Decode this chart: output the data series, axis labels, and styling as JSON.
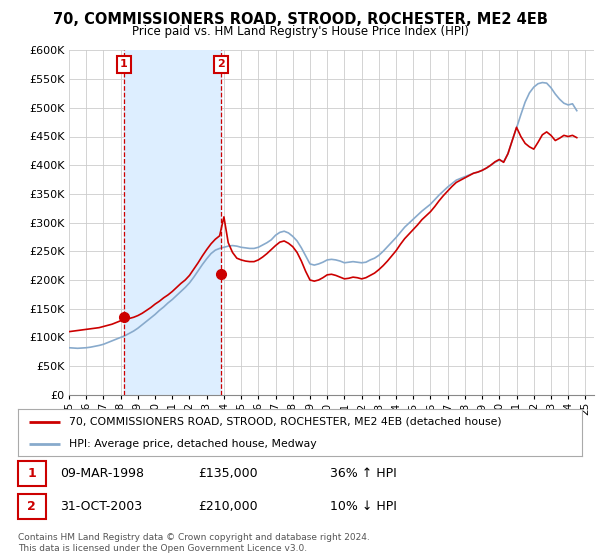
{
  "title": "70, COMMISSIONERS ROAD, STROOD, ROCHESTER, ME2 4EB",
  "subtitle": "Price paid vs. HM Land Registry's House Price Index (HPI)",
  "ylim": [
    0,
    600000
  ],
  "yticks": [
    0,
    50000,
    100000,
    150000,
    200000,
    250000,
    300000,
    350000,
    400000,
    450000,
    500000,
    550000,
    600000
  ],
  "ytick_labels": [
    "£0",
    "£50K",
    "£100K",
    "£150K",
    "£200K",
    "£250K",
    "£300K",
    "£350K",
    "£400K",
    "£450K",
    "£500K",
    "£550K",
    "£600K"
  ],
  "xlim_start": 1995.0,
  "xlim_end": 2025.5,
  "background_color": "#ffffff",
  "plot_bg_color": "#ffffff",
  "grid_color": "#cccccc",
  "sale1": {
    "year": 1998.19,
    "price": 135000,
    "label": "1",
    "date": "09-MAR-1998",
    "price_str": "£135,000",
    "hpi_str": "36% ↑ HPI"
  },
  "sale2": {
    "year": 2003.83,
    "price": 210000,
    "label": "2",
    "date": "31-OCT-2003",
    "price_str": "£210,000",
    "hpi_str": "10% ↓ HPI"
  },
  "legend_label_red": "70, COMMISSIONERS ROAD, STROOD, ROCHESTER, ME2 4EB (detached house)",
  "legend_label_blue": "HPI: Average price, detached house, Medway",
  "footer": "Contains HM Land Registry data © Crown copyright and database right 2024.\nThis data is licensed under the Open Government Licence v3.0.",
  "red_color": "#cc0000",
  "blue_color": "#88aacc",
  "shade_color": "#ddeeff",
  "hpi_x": [
    1995.0,
    1995.25,
    1995.5,
    1995.75,
    1996.0,
    1996.25,
    1996.5,
    1996.75,
    1997.0,
    1997.25,
    1997.5,
    1997.75,
    1998.0,
    1998.25,
    1998.5,
    1998.75,
    1999.0,
    1999.25,
    1999.5,
    1999.75,
    2000.0,
    2000.25,
    2000.5,
    2000.75,
    2001.0,
    2001.25,
    2001.5,
    2001.75,
    2002.0,
    2002.25,
    2002.5,
    2002.75,
    2003.0,
    2003.25,
    2003.5,
    2003.75,
    2004.0,
    2004.25,
    2004.5,
    2004.75,
    2005.0,
    2005.25,
    2005.5,
    2005.75,
    2006.0,
    2006.25,
    2006.5,
    2006.75,
    2007.0,
    2007.25,
    2007.5,
    2007.75,
    2008.0,
    2008.25,
    2008.5,
    2008.75,
    2009.0,
    2009.25,
    2009.5,
    2009.75,
    2010.0,
    2010.25,
    2010.5,
    2010.75,
    2011.0,
    2011.25,
    2011.5,
    2011.75,
    2012.0,
    2012.25,
    2012.5,
    2012.75,
    2013.0,
    2013.25,
    2013.5,
    2013.75,
    2014.0,
    2014.25,
    2014.5,
    2014.75,
    2015.0,
    2015.25,
    2015.5,
    2015.75,
    2016.0,
    2016.25,
    2016.5,
    2016.75,
    2017.0,
    2017.25,
    2017.5,
    2017.75,
    2018.0,
    2018.25,
    2018.5,
    2018.75,
    2019.0,
    2019.25,
    2019.5,
    2019.75,
    2020.0,
    2020.25,
    2020.5,
    2020.75,
    2021.0,
    2021.25,
    2021.5,
    2021.75,
    2022.0,
    2022.25,
    2022.5,
    2022.75,
    2023.0,
    2023.25,
    2023.5,
    2023.75,
    2024.0,
    2024.25,
    2024.5
  ],
  "hpi_y": [
    82000,
    81500,
    81000,
    81500,
    82000,
    83000,
    84500,
    86000,
    88000,
    91000,
    94000,
    97000,
    100000,
    103000,
    107000,
    111000,
    116000,
    122000,
    128000,
    134000,
    140000,
    147000,
    153000,
    160000,
    166000,
    173000,
    180000,
    187000,
    195000,
    205000,
    216000,
    227000,
    237000,
    246000,
    252000,
    255000,
    257000,
    259000,
    260000,
    259000,
    257000,
    256000,
    255000,
    255000,
    257000,
    261000,
    265000,
    270000,
    278000,
    283000,
    285000,
    282000,
    276000,
    268000,
    256000,
    242000,
    228000,
    226000,
    228000,
    231000,
    235000,
    236000,
    235000,
    233000,
    230000,
    231000,
    232000,
    231000,
    230000,
    231000,
    235000,
    238000,
    243000,
    250000,
    258000,
    266000,
    274000,
    283000,
    292000,
    299000,
    306000,
    313000,
    320000,
    326000,
    332000,
    340000,
    348000,
    355000,
    362000,
    368000,
    374000,
    377000,
    380000,
    383000,
    386000,
    388000,
    391000,
    395000,
    400000,
    405000,
    409000,
    406000,
    420000,
    443000,
    465000,
    488000,
    510000,
    526000,
    536000,
    542000,
    544000,
    543000,
    535000,
    524000,
    515000,
    508000,
    505000,
    507000,
    495000
  ],
  "red_x": [
    1995.0,
    1995.25,
    1995.5,
    1995.75,
    1996.0,
    1996.25,
    1996.5,
    1996.75,
    1997.0,
    1997.25,
    1997.5,
    1997.75,
    1998.0,
    1998.25,
    1998.5,
    1998.75,
    1999.0,
    1999.25,
    1999.5,
    1999.75,
    2000.0,
    2000.25,
    2000.5,
    2000.75,
    2001.0,
    2001.25,
    2001.5,
    2001.75,
    2002.0,
    2002.25,
    2002.5,
    2002.75,
    2003.0,
    2003.25,
    2003.5,
    2003.75,
    2004.0,
    2004.25,
    2004.5,
    2004.75,
    2005.0,
    2005.25,
    2005.5,
    2005.75,
    2006.0,
    2006.25,
    2006.5,
    2006.75,
    2007.0,
    2007.25,
    2007.5,
    2007.75,
    2008.0,
    2008.25,
    2008.5,
    2008.75,
    2009.0,
    2009.25,
    2009.5,
    2009.75,
    2010.0,
    2010.25,
    2010.5,
    2010.75,
    2011.0,
    2011.25,
    2011.5,
    2011.75,
    2012.0,
    2012.25,
    2012.5,
    2012.75,
    2013.0,
    2013.25,
    2013.5,
    2013.75,
    2014.0,
    2014.25,
    2014.5,
    2014.75,
    2015.0,
    2015.25,
    2015.5,
    2015.75,
    2016.0,
    2016.25,
    2016.5,
    2016.75,
    2017.0,
    2017.25,
    2017.5,
    2017.75,
    2018.0,
    2018.25,
    2018.5,
    2018.75,
    2019.0,
    2019.25,
    2019.5,
    2019.75,
    2020.0,
    2020.25,
    2020.5,
    2020.75,
    2021.0,
    2021.25,
    2021.5,
    2021.75,
    2022.0,
    2022.25,
    2022.5,
    2022.75,
    2023.0,
    2023.25,
    2023.5,
    2023.75,
    2024.0,
    2024.25,
    2024.5
  ],
  "red_y": [
    110000,
    111000,
    112000,
    113000,
    114000,
    115000,
    116000,
    117000,
    119000,
    121000,
    123000,
    126000,
    129000,
    131000,
    133000,
    135000,
    138000,
    142000,
    147000,
    152000,
    158000,
    163000,
    169000,
    174000,
    180000,
    187000,
    194000,
    200000,
    208000,
    219000,
    230000,
    242000,
    253000,
    263000,
    271000,
    277000,
    310000,
    265000,
    248000,
    238000,
    235000,
    233000,
    232000,
    232000,
    235000,
    240000,
    246000,
    253000,
    260000,
    266000,
    268000,
    264000,
    258000,
    248000,
    233000,
    215000,
    200000,
    198000,
    200000,
    204000,
    209000,
    210000,
    208000,
    205000,
    202000,
    203000,
    205000,
    204000,
    202000,
    204000,
    208000,
    212000,
    218000,
    225000,
    233000,
    242000,
    251000,
    262000,
    272000,
    280000,
    288000,
    296000,
    305000,
    312000,
    319000,
    328000,
    338000,
    347000,
    355000,
    363000,
    370000,
    374000,
    378000,
    382000,
    386000,
    388000,
    391000,
    395000,
    400000,
    406000,
    410000,
    405000,
    420000,
    443000,
    466000,
    450000,
    438000,
    432000,
    428000,
    440000,
    453000,
    458000,
    452000,
    443000,
    447000,
    452000,
    450000,
    452000,
    448000
  ]
}
